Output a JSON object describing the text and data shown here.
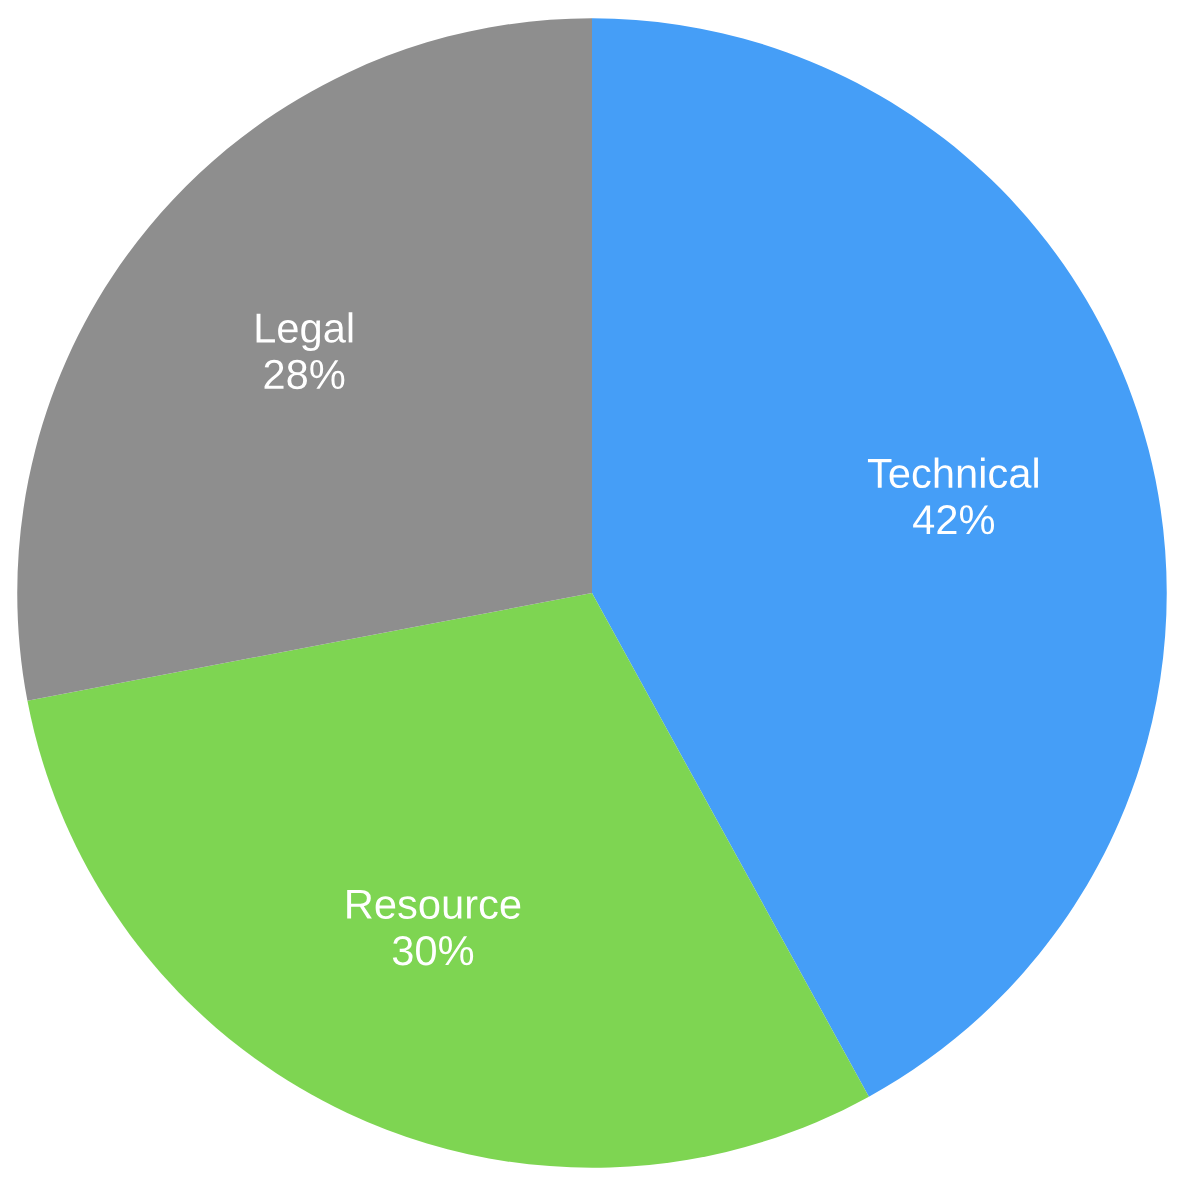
{
  "chart_data": {
    "type": "pie",
    "categories": [
      "Technical",
      "Resource",
      "Legal"
    ],
    "values": [
      42,
      30,
      28
    ],
    "value_labels": [
      "42%",
      "30%",
      "28%"
    ],
    "colors": [
      "#459ef7",
      "#7ed552",
      "#8e8e8e"
    ]
  }
}
